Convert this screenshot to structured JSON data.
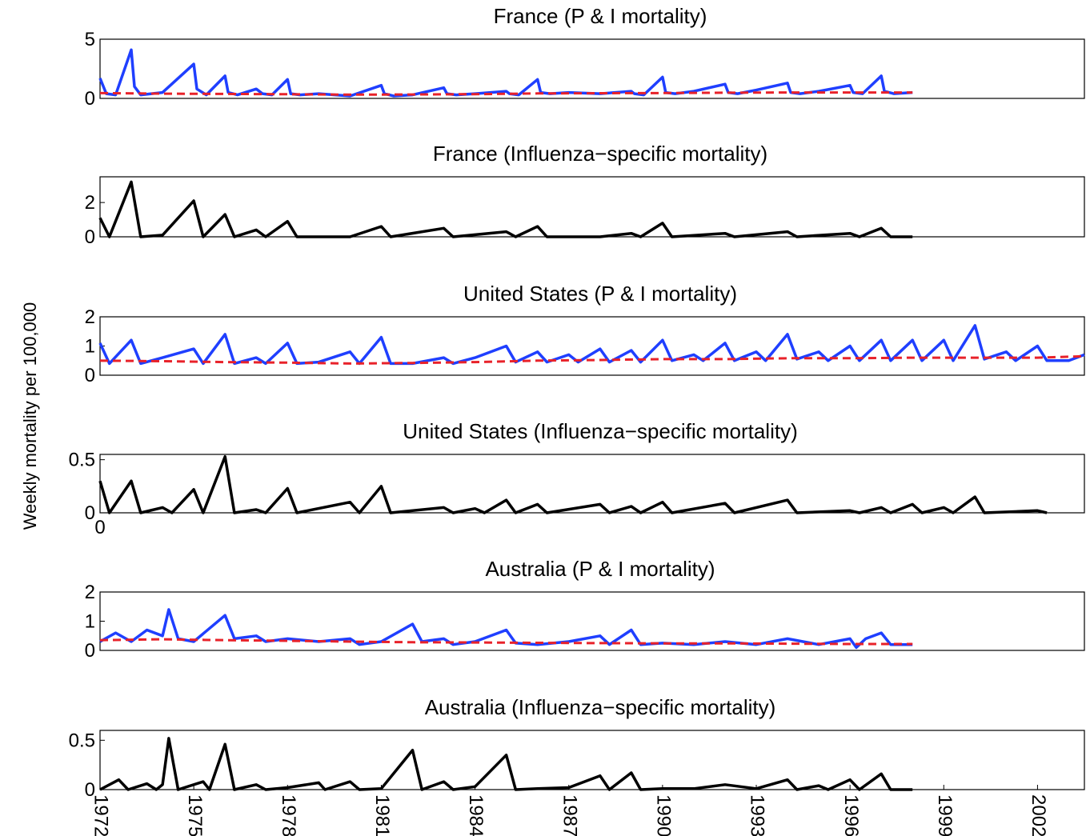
{
  "chart_data": [
    {
      "type": "line",
      "title": "France (P & I mortality)",
      "ylim": [
        0,
        5
      ],
      "yticks": [
        "0",
        "5"
      ],
      "xlim": [
        1972,
        2003.5
      ],
      "series": [
        {
          "color": "#1f3fff",
          "style": "solid",
          "x": [
            1972,
            1972.2,
            1972.5,
            1973.0,
            1973.1,
            1973.3,
            1974,
            1975.0,
            1975.1,
            1975.4,
            1976.0,
            1976.1,
            1976.4,
            1977.0,
            1977.2,
            1977.5,
            1978.0,
            1978.1,
            1978.4,
            1979,
            1980,
            1981.0,
            1981.1,
            1981.4,
            1982,
            1983.0,
            1983.1,
            1983.4,
            1984,
            1985.0,
            1985.1,
            1985.4,
            1986.0,
            1986.1,
            1986.4,
            1987,
            1988,
            1989.0,
            1989.1,
            1989.4,
            1990.0,
            1990.1,
            1990.4,
            1991,
            1992.0,
            1992.1,
            1992.4,
            1993,
            1994.0,
            1994.1,
            1994.4,
            1995,
            1996.0,
            1996.1,
            1996.4,
            1997.0,
            1997.1,
            1997.4,
            1998.0
          ],
          "values": [
            1.7,
            0.4,
            0.3,
            4.1,
            1.0,
            0.3,
            0.5,
            2.9,
            0.8,
            0.3,
            1.9,
            0.5,
            0.3,
            0.8,
            0.4,
            0.3,
            1.6,
            0.4,
            0.3,
            0.4,
            0.2,
            1.1,
            0.4,
            0.2,
            0.3,
            0.9,
            0.4,
            0.3,
            0.4,
            0.6,
            0.4,
            0.3,
            1.6,
            0.5,
            0.4,
            0.5,
            0.4,
            0.6,
            0.4,
            0.3,
            1.8,
            0.5,
            0.4,
            0.6,
            1.2,
            0.5,
            0.4,
            0.7,
            1.3,
            0.5,
            0.4,
            0.6,
            1.1,
            0.5,
            0.4,
            1.9,
            0.6,
            0.4,
            0.5
          ]
        },
        {
          "color": "#e8222a",
          "style": "dashed",
          "x": [
            1972,
            1974,
            1976,
            1978,
            1980,
            1982,
            1984,
            1986,
            1988,
            1990,
            1992,
            1994,
            1996,
            1998
          ],
          "values": [
            0.45,
            0.4,
            0.38,
            0.35,
            0.32,
            0.33,
            0.36,
            0.42,
            0.44,
            0.45,
            0.48,
            0.5,
            0.5,
            0.5
          ]
        }
      ]
    },
    {
      "type": "line",
      "title": "France (Influenza−specific mortality)",
      "ylim": [
        0,
        3.5
      ],
      "yticks": [
        "0",
        "2"
      ],
      "xlim": [
        1972,
        2003.5
      ],
      "series": [
        {
          "color": "#000000",
          "style": "solid",
          "x": [
            1972,
            1972.3,
            1973.0,
            1973.3,
            1974,
            1975.0,
            1975.3,
            1976.0,
            1976.3,
            1977.0,
            1977.3,
            1978.0,
            1978.3,
            1980,
            1981.0,
            1981.3,
            1983.0,
            1983.3,
            1985.0,
            1985.3,
            1986.0,
            1986.3,
            1988,
            1989.0,
            1989.3,
            1990.0,
            1990.3,
            1992.0,
            1992.3,
            1994.0,
            1994.3,
            1996.0,
            1996.3,
            1997.0,
            1997.3,
            1998.0
          ],
          "values": [
            1.1,
            0.0,
            3.2,
            0.0,
            0.1,
            2.1,
            0.0,
            1.3,
            0.0,
            0.4,
            0.0,
            0.9,
            0.0,
            0.0,
            0.6,
            0.0,
            0.5,
            0.0,
            0.3,
            0.0,
            0.6,
            0.0,
            0.0,
            0.2,
            0.0,
            0.8,
            0.0,
            0.2,
            0.0,
            0.3,
            0.0,
            0.2,
            0.0,
            0.5,
            0.0,
            0.0
          ]
        }
      ]
    },
    {
      "type": "line",
      "title": "United States (P & I mortality)",
      "ylim": [
        0,
        2
      ],
      "yticks": [
        "0",
        "1",
        "2"
      ],
      "xlim": [
        1972,
        2003.5
      ],
      "series": [
        {
          "color": "#1f3fff",
          "style": "solid",
          "x": [
            1972,
            1972.3,
            1973.0,
            1973.3,
            1974,
            1975.0,
            1975.3,
            1976.0,
            1976.3,
            1977.0,
            1977.3,
            1978.0,
            1978.3,
            1979,
            1980.0,
            1980.3,
            1981.0,
            1981.3,
            1982,
            1983.0,
            1983.3,
            1984,
            1985.0,
            1985.3,
            1986.0,
            1986.3,
            1987.0,
            1987.3,
            1988.0,
            1988.3,
            1989.0,
            1989.3,
            1990.0,
            1990.3,
            1991.0,
            1991.3,
            1992.0,
            1992.3,
            1993.0,
            1993.3,
            1994.0,
            1994.3,
            1995.0,
            1995.3,
            1996.0,
            1996.3,
            1997.0,
            1997.3,
            1998.0,
            1998.3,
            1999.0,
            1999.3,
            2000.0,
            2000.3,
            2001.0,
            2001.3,
            2002.0,
            2002.3,
            2003.0,
            2003.5
          ],
          "values": [
            1.1,
            0.4,
            1.2,
            0.4,
            0.6,
            0.9,
            0.4,
            1.4,
            0.4,
            0.6,
            0.4,
            1.1,
            0.4,
            0.45,
            0.8,
            0.4,
            1.3,
            0.4,
            0.4,
            0.6,
            0.4,
            0.6,
            1.0,
            0.45,
            0.8,
            0.45,
            0.7,
            0.45,
            0.9,
            0.45,
            0.85,
            0.45,
            1.2,
            0.5,
            0.7,
            0.5,
            1.1,
            0.5,
            0.8,
            0.5,
            1.4,
            0.55,
            0.8,
            0.5,
            1.0,
            0.5,
            1.2,
            0.5,
            1.2,
            0.5,
            1.2,
            0.5,
            1.7,
            0.55,
            0.8,
            0.5,
            1.0,
            0.5,
            0.5,
            0.7
          ]
        },
        {
          "color": "#e8222a",
          "style": "dashed",
          "x": [
            1972,
            1974,
            1976,
            1978,
            1980,
            1982,
            1984,
            1986,
            1988,
            1990,
            1992,
            1994,
            1996,
            1998,
            2000,
            2002,
            2003.5
          ],
          "values": [
            0.5,
            0.48,
            0.45,
            0.43,
            0.4,
            0.42,
            0.45,
            0.5,
            0.52,
            0.55,
            0.55,
            0.58,
            0.58,
            0.6,
            0.6,
            0.6,
            0.65
          ]
        }
      ]
    },
    {
      "type": "line",
      "title": "United States (Influenza−specific mortality)",
      "ylim": [
        0,
        0.55
      ],
      "yticks": [
        "0",
        "0.5"
      ],
      "xlim": [
        1972,
        2003.5
      ],
      "series": [
        {
          "color": "#000000",
          "style": "solid",
          "x": [
            1972,
            1972.3,
            1973.0,
            1973.3,
            1974,
            1974.3,
            1975.0,
            1975.3,
            1976.0,
            1976.3,
            1977.0,
            1977.3,
            1978.0,
            1978.3,
            1980.0,
            1980.3,
            1981.0,
            1981.3,
            1983.0,
            1983.3,
            1984.0,
            1984.3,
            1985.0,
            1985.3,
            1986.0,
            1986.3,
            1988.0,
            1988.3,
            1989.0,
            1989.3,
            1990.0,
            1990.3,
            1992.0,
            1992.3,
            1994.0,
            1994.3,
            1996.0,
            1996.3,
            1997.0,
            1997.3,
            1998.0,
            1998.3,
            1999.0,
            1999.3,
            2000.0,
            2000.3,
            2002.0,
            2002.3
          ],
          "values": [
            0.3,
            0.0,
            0.3,
            0.0,
            0.05,
            0.0,
            0.22,
            0.0,
            0.53,
            0.0,
            0.03,
            0.0,
            0.23,
            0.0,
            0.1,
            0.0,
            0.25,
            0.0,
            0.05,
            0.0,
            0.04,
            0.0,
            0.12,
            0.0,
            0.08,
            0.0,
            0.08,
            0.0,
            0.06,
            0.0,
            0.1,
            0.0,
            0.09,
            0.0,
            0.12,
            0.0,
            0.02,
            0.0,
            0.05,
            0.0,
            0.08,
            0.0,
            0.05,
            0.0,
            0.15,
            0.0,
            0.02,
            0.0
          ]
        }
      ],
      "annotations": [
        "0"
      ]
    },
    {
      "type": "line",
      "title": "Australia (P & I mortality)",
      "ylim": [
        0,
        2
      ],
      "yticks": [
        "0",
        "1",
        "2"
      ],
      "xlim": [
        1972,
        2003.5
      ],
      "series": [
        {
          "color": "#1f3fff",
          "style": "solid",
          "x": [
            1972,
            1972.5,
            1973,
            1973.5,
            1974.0,
            1974.2,
            1974.5,
            1975,
            1976.0,
            1976.3,
            1977.0,
            1977.3,
            1978,
            1979,
            1980.0,
            1980.3,
            1981,
            1982.0,
            1982.3,
            1983.0,
            1983.3,
            1984,
            1985.0,
            1985.3,
            1986,
            1987,
            1988.0,
            1988.3,
            1989.0,
            1989.3,
            1990,
            1991,
            1992,
            1993,
            1994,
            1995,
            1996.0,
            1996.2,
            1996.5,
            1997.0,
            1997.3,
            1998.0
          ],
          "values": [
            0.3,
            0.6,
            0.3,
            0.7,
            0.5,
            1.4,
            0.4,
            0.3,
            1.2,
            0.4,
            0.5,
            0.3,
            0.4,
            0.3,
            0.4,
            0.2,
            0.3,
            0.9,
            0.3,
            0.4,
            0.2,
            0.3,
            0.7,
            0.25,
            0.2,
            0.3,
            0.5,
            0.2,
            0.7,
            0.2,
            0.25,
            0.2,
            0.3,
            0.2,
            0.4,
            0.2,
            0.4,
            0.1,
            0.4,
            0.6,
            0.2,
            0.2
          ]
        },
        {
          "color": "#e8222a",
          "style": "dashed",
          "x": [
            1972,
            1974,
            1976,
            1978,
            1980,
            1982,
            1984,
            1986,
            1988,
            1990,
            1992,
            1994,
            1996,
            1998
          ],
          "values": [
            0.35,
            0.38,
            0.35,
            0.33,
            0.3,
            0.28,
            0.27,
            0.26,
            0.25,
            0.24,
            0.24,
            0.23,
            0.22,
            0.22
          ]
        }
      ]
    },
    {
      "type": "line",
      "title": "Australia (Influenza−specific mortality)",
      "ylim": [
        0,
        0.6
      ],
      "yticks": [
        "0",
        "0.5"
      ],
      "xlim": [
        1972,
        2003.5
      ],
      "xticks": [
        "1972",
        "1975",
        "1978",
        "1981",
        "1984",
        "1987",
        "1990",
        "1993",
        "1996",
        "1999",
        "2002"
      ],
      "series": [
        {
          "color": "#000000",
          "style": "solid",
          "x": [
            1972,
            1972.6,
            1972.9,
            1973.5,
            1973.8,
            1974.0,
            1974.2,
            1974.5,
            1975.3,
            1975.5,
            1976.0,
            1976.3,
            1977.0,
            1977.3,
            1978,
            1979.0,
            1979.2,
            1980.0,
            1980.3,
            1981,
            1982.0,
            1982.3,
            1983.0,
            1983.3,
            1984,
            1985.0,
            1985.3,
            1986,
            1987,
            1988.0,
            1988.3,
            1989.0,
            1989.3,
            1990,
            1991,
            1992,
            1993,
            1994.0,
            1994.3,
            1995.0,
            1995.3,
            1996.0,
            1996.3,
            1997.0,
            1997.3,
            1998.0
          ],
          "values": [
            0.0,
            0.1,
            0.0,
            0.06,
            0.0,
            0.05,
            0.52,
            0.0,
            0.08,
            0.0,
            0.46,
            0.0,
            0.05,
            0.0,
            0.02,
            0.07,
            0.0,
            0.08,
            0.0,
            0.01,
            0.4,
            0.0,
            0.08,
            0.0,
            0.03,
            0.35,
            0.0,
            0.01,
            0.02,
            0.14,
            0.0,
            0.17,
            0.0,
            0.01,
            0.01,
            0.05,
            0.01,
            0.1,
            0.0,
            0.04,
            0.0,
            0.1,
            0.0,
            0.16,
            0.0,
            0.0
          ]
        }
      ]
    }
  ],
  "ylabel": "Weekly mortality per 100,000"
}
